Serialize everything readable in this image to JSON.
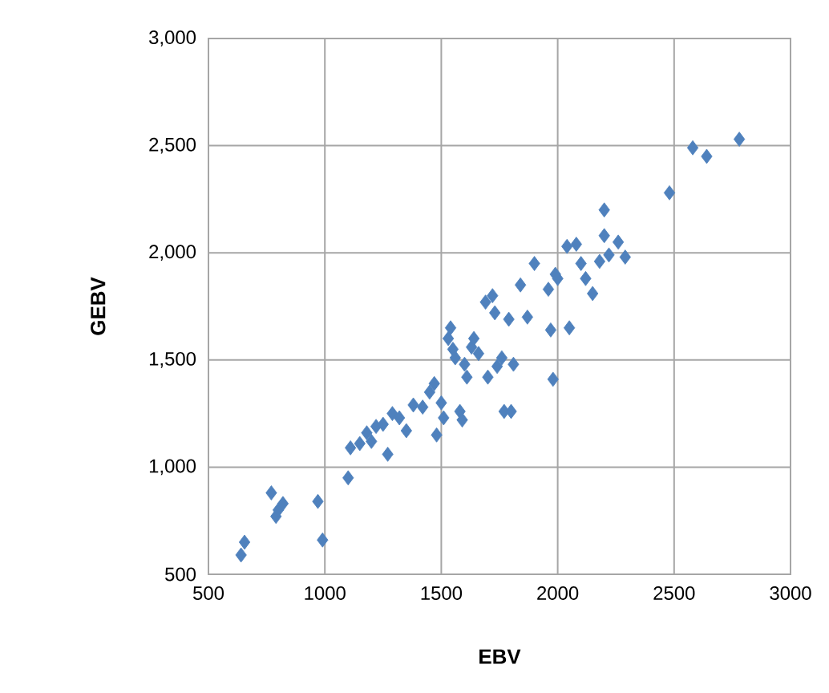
{
  "chart_data": {
    "type": "scatter",
    "xlabel": "EBV",
    "ylabel": "GEBV",
    "color": "#4f81bd",
    "marker": "diamond",
    "grid": true,
    "xlim": [
      500,
      3000
    ],
    "xticks": [
      500,
      1000,
      1500,
      2000,
      2500,
      3000
    ],
    "ylim": [
      500,
      3000
    ],
    "yticks": [
      {
        "value": 500,
        "label": "500"
      },
      {
        "value": 1000,
        "label": "1,000"
      },
      {
        "value": 1500,
        "label": "1,500"
      },
      {
        "value": 2000,
        "label": "2,000"
      },
      {
        "value": 2500,
        "label": "2,500"
      },
      {
        "value": 3000,
        "label": "3,000"
      }
    ],
    "x": [
      640,
      655,
      770,
      790,
      800,
      820,
      970,
      990,
      1100,
      1110,
      1150,
      1180,
      1200,
      1220,
      1250,
      1270,
      1290,
      1320,
      1350,
      1380,
      1420,
      1450,
      1470,
      1480,
      1500,
      1510,
      1530,
      1540,
      1550,
      1560,
      1580,
      1590,
      1600,
      1610,
      1630,
      1640,
      1660,
      1690,
      1700,
      1720,
      1730,
      1740,
      1760,
      1770,
      1790,
      1800,
      1810,
      1840,
      1870,
      1900,
      1960,
      1970,
      1980,
      1990,
      2000,
      2040,
      2050,
      2080,
      2100,
      2120,
      2150,
      2180,
      2200,
      2200,
      2220,
      2260,
      2290,
      2480,
      2580,
      2640,
      2780
    ],
    "values": [
      590,
      650,
      880,
      770,
      800,
      830,
      840,
      660,
      950,
      1090,
      1110,
      1160,
      1120,
      1190,
      1200,
      1060,
      1250,
      1230,
      1170,
      1290,
      1280,
      1350,
      1390,
      1150,
      1300,
      1230,
      1600,
      1650,
      1550,
      1510,
      1260,
      1220,
      1480,
      1420,
      1560,
      1600,
      1530,
      1770,
      1420,
      1800,
      1720,
      1470,
      1510,
      1260,
      1690,
      1260,
      1480,
      1850,
      1700,
      1950,
      1830,
      1640,
      1410,
      1900,
      1880,
      2030,
      1650,
      2040,
      1950,
      1880,
      1810,
      1960,
      2200,
      2080,
      1990,
      2050,
      1980,
      2280,
      2490,
      2450,
      2530
    ]
  }
}
